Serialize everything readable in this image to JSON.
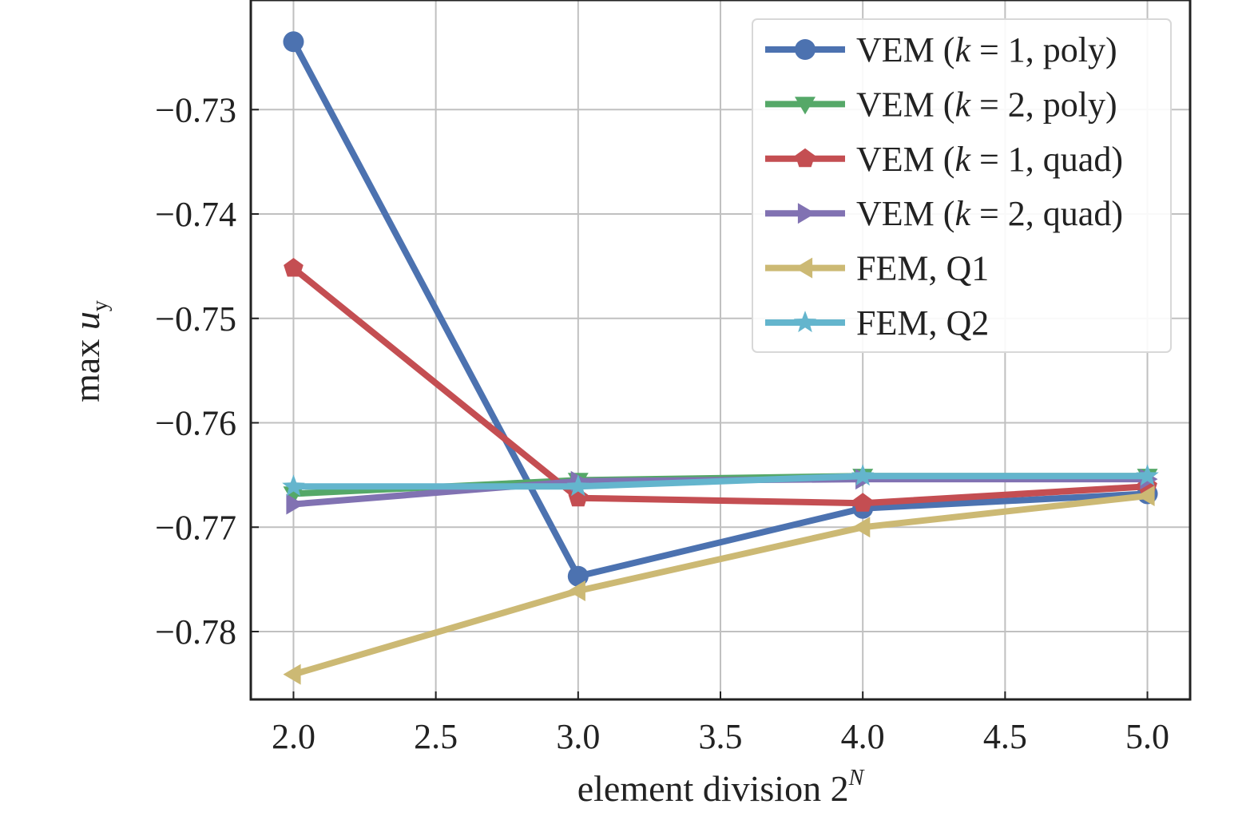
{
  "chart_data": {
    "type": "line",
    "title": "",
    "xlabel": {
      "prefix": "element division 2",
      "sup": "N"
    },
    "ylabel": {
      "prefix": "max ",
      "var": "u",
      "sub": "y"
    },
    "xlim": [
      1.85,
      5.15
    ],
    "ylim": [
      -0.7865,
      -0.7195
    ],
    "xticks": [
      2.0,
      2.5,
      3.0,
      3.5,
      4.0,
      4.5,
      5.0
    ],
    "xtick_labels": [
      "2.0",
      "2.5",
      "3.0",
      "3.5",
      "4.0",
      "4.5",
      "5.0"
    ],
    "yticks": [
      -0.73,
      -0.74,
      -0.75,
      -0.76,
      -0.77,
      -0.78
    ],
    "ytick_labels": [
      "−0.73",
      "−0.74",
      "−0.75",
      "−0.76",
      "−0.77",
      "−0.78"
    ],
    "grid": true,
    "legend_position": "top-right",
    "x": [
      2,
      3,
      4,
      5
    ],
    "series": [
      {
        "legend": {
          "pre": "VEM (",
          "k": "k",
          "post": " = 1, poly)"
        },
        "color": "#4c72b0",
        "marker": "circle",
        "values": [
          -0.7235,
          -0.7747,
          -0.7682,
          -0.7668
        ]
      },
      {
        "legend": {
          "pre": "VEM (",
          "k": "k",
          "post": " = 2, poly)"
        },
        "color": "#55a868",
        "marker": "triangle-down",
        "values": [
          -0.7668,
          -0.7655,
          -0.7651,
          -0.7651
        ]
      },
      {
        "legend": {
          "pre": "VEM (",
          "k": "k",
          "post": " = 1, quad)"
        },
        "color": "#c44e52",
        "marker": "pentagon",
        "values": [
          -0.7452,
          -0.7672,
          -0.7677,
          -0.7661
        ]
      },
      {
        "legend": {
          "pre": "VEM (",
          "k": "k",
          "post": " = 2, quad)"
        },
        "color": "#8172b2",
        "marker": "triangle-right",
        "values": [
          -0.7678,
          -0.7656,
          -0.7654,
          -0.7654
        ]
      },
      {
        "legend": {
          "pre": "FEM, Q1",
          "k": "",
          "post": ""
        },
        "color": "#ccb974",
        "marker": "triangle-left",
        "values": [
          -0.7841,
          -0.7761,
          -0.77,
          -0.767
        ]
      },
      {
        "legend": {
          "pre": "FEM, Q2",
          "k": "",
          "post": ""
        },
        "color": "#64b5cd",
        "marker": "star",
        "values": [
          -0.7661,
          -0.7661,
          -0.7651,
          -0.7651
        ]
      }
    ]
  }
}
